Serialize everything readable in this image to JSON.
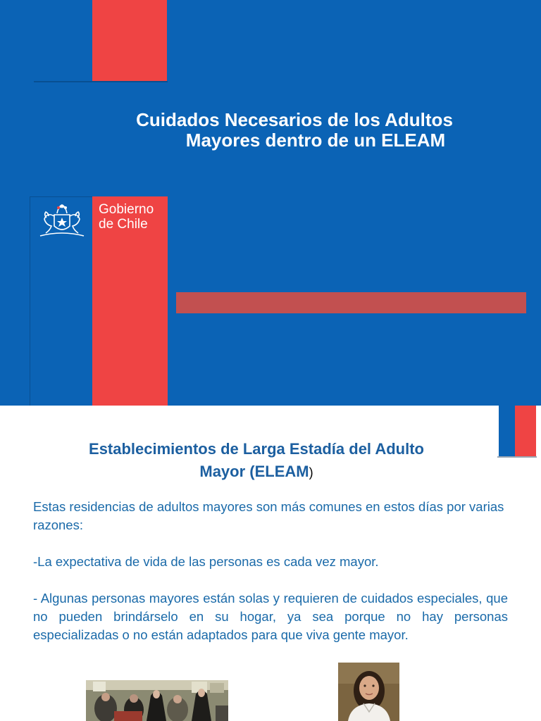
{
  "slide1": {
    "title_line1": "Cuidados Necesarios de los Adultos",
    "title_line2": "Mayores dentro de un ELEAM",
    "logo_line1": "Gobierno",
    "logo_line2": "de Chile"
  },
  "slide2": {
    "heading_line1": "Establecimientos de Larga Estadía del Adulto",
    "heading_line2": "Mayor (ELEAM",
    "heading_paren": ")",
    "paragraph1": "Estas residencias de adultos mayores son más comunes en estos días por varias razones:",
    "paragraph2": "-La expectativa de vida de las personas es cada vez mayor.",
    "paragraph3": "- Algunas personas mayores están solas y requieren de cuidados especiales, que no pueden brindárselo en su hogar, ya sea porque no hay personas especializadas o no están adaptados para que viva gente mayor."
  },
  "colors": {
    "blue": "#0b63b5",
    "red": "#ef4444",
    "bar_red": "#c25050",
    "heading_blue": "#1c5fa0",
    "body_blue": "#1a6aa9"
  }
}
